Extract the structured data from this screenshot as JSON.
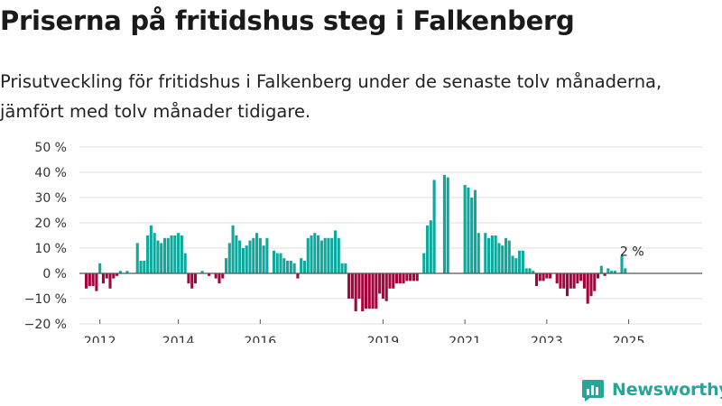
{
  "header": {
    "title": "Priserna på fritidshus steg i Falkenberg",
    "subtitle": "Prisutveckling för fritidshus i Falkenberg under de senaste tolv månaderna, jämfört med tolv månader tidigare."
  },
  "brand": {
    "name": "Newsworthy",
    "icon": "newsworthy-logo-icon",
    "color": "#26a59a"
  },
  "chart_data": {
    "type": "bar",
    "title": "",
    "xlabel": "",
    "ylabel": "",
    "ylim": [
      -20,
      50
    ],
    "yticks": [
      -20,
      -10,
      0,
      10,
      20,
      30,
      40,
      50
    ],
    "ytick_labels": [
      "−20 %",
      "−10 %",
      "0 %",
      "10 %",
      "20 %",
      "30 %",
      "40 %",
      "50 %"
    ],
    "xtick_labels": [
      {
        "label": "2012",
        "month_index": 4
      },
      {
        "label": "2014",
        "month_index": 27
      },
      {
        "label": "2016",
        "month_index": 51
      },
      {
        "label": "2019",
        "month_index": 87
      },
      {
        "label": "2021",
        "month_index": 111
      },
      {
        "label": "2023",
        "month_index": 135
      },
      {
        "label": "2025",
        "month_index": 159
      }
    ],
    "grid": true,
    "legend": "none",
    "colors": {
      "positive": "#0fa89c",
      "negative": "#a3063f"
    },
    "series": [
      {
        "start": "2011-12",
        "frequency": "monthly",
        "values": [
          -6,
          -5,
          -5,
          -7,
          4,
          -4,
          -2,
          -6,
          -2,
          -1,
          1,
          0,
          1,
          0,
          0,
          12,
          5,
          5,
          15,
          19,
          16,
          13,
          12,
          14,
          14,
          15,
          15,
          16,
          15,
          8,
          -4,
          -6,
          -4,
          0,
          1,
          0,
          -1,
          0,
          -2,
          -4,
          -2,
          6,
          12,
          19,
          15,
          13,
          10,
          11,
          13,
          14,
          16,
          14,
          11,
          14,
          0,
          9,
          8,
          8,
          6,
          5,
          5,
          4,
          -2,
          6,
          5,
          14,
          15,
          16,
          15,
          13,
          14,
          14,
          14,
          17,
          14,
          4,
          4,
          -10,
          -10,
          -15,
          -10,
          -15,
          -14,
          -14,
          -14,
          -14,
          -8,
          -10,
          -11,
          -6,
          -6,
          -4,
          -4,
          -4,
          -3,
          -3,
          -3,
          -3,
          0,
          8,
          19,
          21,
          37,
          0,
          0,
          39,
          38,
          0,
          0,
          0,
          0,
          35,
          34,
          30,
          33,
          16,
          0,
          16,
          14,
          15,
          15,
          12,
          11,
          14,
          13,
          7,
          6,
          9,
          9,
          2,
          2,
          1,
          -5,
          -3,
          -3,
          -2,
          -2,
          0,
          -4,
          -6,
          -6,
          -9,
          -6,
          -6,
          -4,
          -3,
          -6,
          -12,
          -9,
          -7,
          -2,
          3,
          -1,
          2,
          1,
          1,
          0,
          7,
          2
        ]
      }
    ],
    "annotations": [
      {
        "label": "2 %",
        "month_index": 160,
        "value": 2
      }
    ]
  }
}
